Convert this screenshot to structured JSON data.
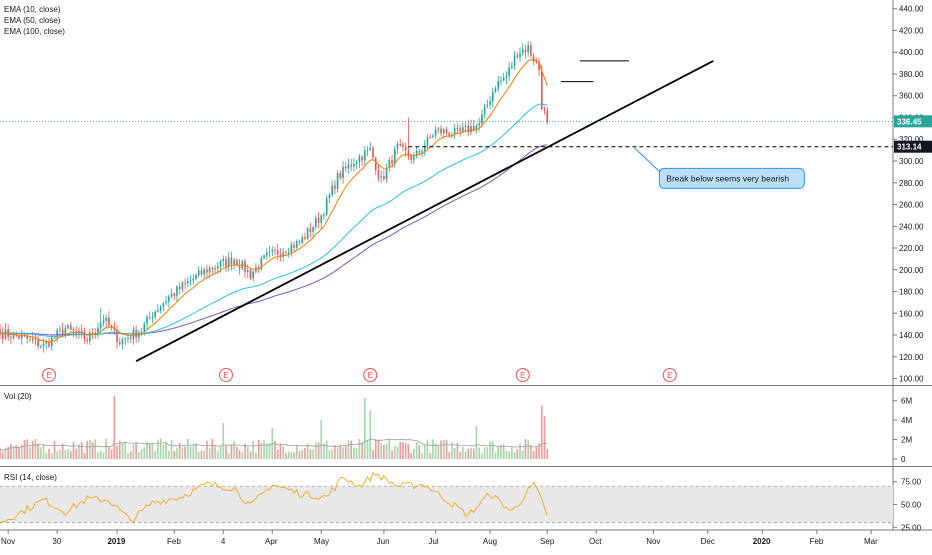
{
  "chart_data": {
    "type": "candlestick",
    "price_pane": {
      "indicators": [
        "EMA (10, close)",
        "EMA (50, close)",
        "EMA (100, close)"
      ],
      "ylim": [
        95,
        448
      ],
      "y_ticks": [
        "100.00",
        "120.00",
        "140.00",
        "160.00",
        "180.00",
        "200.00",
        "220.00",
        "240.00",
        "260.00",
        "280.00",
        "300.00",
        "320.00",
        "340.00",
        "360.00",
        "380.00",
        "400.00",
        "420.00",
        "440.00"
      ],
      "last_price_label": "336.45",
      "last_price": 336.45,
      "support_label": "313.14",
      "support_level": 313.14,
      "annotation": "Break below seems very bearish",
      "earnings_marker": "E",
      "earnings_x": [
        18,
        83,
        136,
        192,
        246
      ],
      "candles": {
        "count": 202,
        "anchors": [
          [
            0,
            142
          ],
          [
            8,
            138
          ],
          [
            16,
            130
          ],
          [
            24,
            146
          ],
          [
            32,
            136
          ],
          [
            38,
            155
          ],
          [
            44,
            134
          ],
          [
            52,
            145
          ],
          [
            56,
            160
          ],
          [
            62,
            175
          ],
          [
            70,
            190
          ],
          [
            76,
            200
          ],
          [
            86,
            210
          ],
          [
            92,
            196
          ],
          [
            98,
            212
          ],
          [
            110,
            225
          ],
          [
            118,
            250
          ],
          [
            124,
            285
          ],
          [
            130,
            300
          ],
          [
            136,
            310
          ],
          [
            140,
            282
          ],
          [
            146,
            312
          ],
          [
            152,
            302
          ],
          [
            160,
            328
          ],
          [
            168,
            325
          ],
          [
            176,
            334
          ],
          [
            182,
            370
          ],
          [
            186,
            378
          ],
          [
            190,
            400
          ],
          [
            194,
            404
          ],
          [
            198,
            384
          ],
          [
            199,
            352
          ],
          [
            201,
            336
          ]
        ],
        "hi_spikes": [
          [
            37,
            165
          ],
          [
            150,
            340
          ],
          [
            195,
            410
          ]
        ]
      },
      "ema10_color": "#f57c00",
      "ema50_color": "#26c6da",
      "ema100_color": "#7e57c2",
      "trendline": {
        "x1": 50,
        "y1": 116,
        "x2": 262,
        "y2": 392
      },
      "resistance_lines": [
        {
          "x1": 206,
          "x2": 218,
          "y": 373
        },
        {
          "x1": 213,
          "x2": 231,
          "y": 392
        }
      ]
    },
    "volume_pane": {
      "label": "Vol (20)",
      "ylim": [
        0,
        7
      ],
      "y_ticks": [
        "0",
        "2M",
        "4M",
        "6M"
      ],
      "up_color": "#a5d6a7",
      "down_color": "#ef9a9a",
      "ma_color": "#9e9e9e",
      "spikes": [
        [
          42,
          6.5
        ],
        [
          82,
          3.7
        ],
        [
          100,
          3.2
        ],
        [
          118,
          4.0
        ],
        [
          134,
          6.3
        ],
        [
          136,
          5.0
        ],
        [
          175,
          3.4
        ],
        [
          199,
          5.5
        ],
        [
          200,
          4.4
        ]
      ]
    },
    "rsi_pane": {
      "label": "RSI (14, close)",
      "ylim": [
        22,
        90
      ],
      "y_ticks": [
        "25.00",
        "50.00",
        "75.00"
      ],
      "band": [
        30,
        70
      ],
      "color": "#f5a623",
      "anchors": [
        [
          0,
          30
        ],
        [
          8,
          42
        ],
        [
          16,
          55
        ],
        [
          24,
          42
        ],
        [
          32,
          56
        ],
        [
          40,
          55
        ],
        [
          48,
          32
        ],
        [
          56,
          52
        ],
        [
          66,
          58
        ],
        [
          76,
          72
        ],
        [
          86,
          68
        ],
        [
          92,
          48
        ],
        [
          100,
          72
        ],
        [
          110,
          62
        ],
        [
          120,
          58
        ],
        [
          126,
          80
        ],
        [
          132,
          70
        ],
        [
          138,
          84
        ],
        [
          146,
          70
        ],
        [
          156,
          72
        ],
        [
          172,
          38
        ],
        [
          180,
          62
        ],
        [
          188,
          42
        ],
        [
          196,
          72
        ],
        [
          200,
          48
        ],
        [
          201,
          38
        ]
      ]
    },
    "x_ticks": [
      {
        "label": "Nov",
        "x": 3
      },
      {
        "label": "30",
        "x": 21
      },
      {
        "label": "2019",
        "x": 43
      },
      {
        "label": "Feb",
        "x": 64
      },
      {
        "label": "4",
        "x": 82
      },
      {
        "label": "Apr",
        "x": 100
      },
      {
        "label": "May",
        "x": 118
      },
      {
        "label": "Jun",
        "x": 141
      },
      {
        "label": "Jul",
        "x": 160
      },
      {
        "label": "Aug",
        "x": 180
      },
      {
        "label": "Sep",
        "x": 201
      },
      {
        "label": "Oct",
        "x": 219
      },
      {
        "label": "Nov",
        "x": 240
      },
      {
        "label": "Dec",
        "x": 260
      },
      {
        "label": "2020",
        "x": 280
      },
      {
        "label": "Feb",
        "x": 300
      },
      {
        "label": "Mar",
        "x": 320
      }
    ],
    "x_range": [
      0,
      328
    ]
  }
}
